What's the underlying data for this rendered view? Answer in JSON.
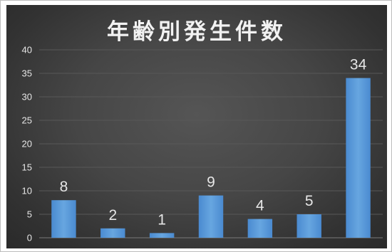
{
  "chart_data": {
    "type": "bar",
    "title": "年齢別発生件数",
    "xlabel": "",
    "ylabel": "",
    "categories": [
      "",
      "",
      "",
      "",
      "",
      "",
      ""
    ],
    "values": [
      8,
      2,
      1,
      9,
      4,
      5,
      34
    ],
    "ylim": [
      0,
      40
    ],
    "yticks": [
      0,
      5,
      10,
      15,
      20,
      25,
      30,
      35,
      40
    ],
    "grid": true,
    "legend": "none",
    "bar_color": "#5b9bd5",
    "background_color": "#3f3f3f"
  }
}
